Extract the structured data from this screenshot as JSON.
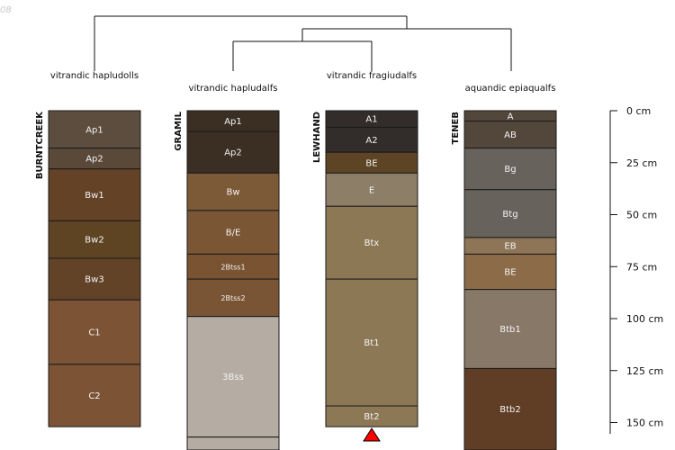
{
  "stamp": "08",
  "depth_unit": "cm",
  "axis_ticks": [
    {
      "depth": 0,
      "label": "0 cm"
    },
    {
      "depth": 25,
      "label": "25 cm"
    },
    {
      "depth": 50,
      "label": "50 cm"
    },
    {
      "depth": 75,
      "label": "75 cm"
    },
    {
      "depth": 100,
      "label": "100 cm"
    },
    {
      "depth": 125,
      "label": "125 cm"
    },
    {
      "depth": 150,
      "label": "150 cm"
    }
  ],
  "profiles": [
    {
      "id": "BURNTCREEK",
      "taxon": "vitrandic hapludolls",
      "horizons": [
        {
          "name": "Ap1",
          "top": 0,
          "bottom": 18,
          "color": "#5c4d3e"
        },
        {
          "name": "Ap2",
          "top": 18,
          "bottom": 28,
          "color": "#5a4939"
        },
        {
          "name": "Bw1",
          "top": 28,
          "bottom": 53,
          "color": "#634226"
        },
        {
          "name": "Bw2",
          "top": 53,
          "bottom": 71,
          "color": "#5f4424"
        },
        {
          "name": "Bw3",
          "top": 71,
          "bottom": 91,
          "color": "#624328"
        },
        {
          "name": "C1",
          "top": 91,
          "bottom": 122,
          "color": "#7c5435"
        },
        {
          "name": "C2",
          "top": 122,
          "bottom": 152,
          "color": "#7c5435"
        }
      ]
    },
    {
      "id": "GRAMIL",
      "taxon": "vitrandic hapludalfs",
      "horizons": [
        {
          "name": "Ap1",
          "top": 0,
          "bottom": 10,
          "color": "#3b2f24"
        },
        {
          "name": "Ap2",
          "top": 10,
          "bottom": 30,
          "color": "#3b2e22"
        },
        {
          "name": "Bw",
          "top": 30,
          "bottom": 48,
          "color": "#7d5a37"
        },
        {
          "name": "B/E",
          "top": 48,
          "bottom": 69,
          "color": "#7a5634"
        },
        {
          "name": "2Btss1",
          "top": 69,
          "bottom": 81,
          "color": "#7a5432"
        },
        {
          "name": "2Btss2",
          "top": 81,
          "bottom": 99,
          "color": "#7a5535"
        },
        {
          "name": "3Bss",
          "top": 99,
          "bottom": 157,
          "color": "#b5aca3"
        },
        {
          "name": "",
          "top": 157,
          "bottom": 165,
          "color": "#b5aca3"
        }
      ]
    },
    {
      "id": "LEWHAND",
      "taxon": "vitrandic fragiudalfs",
      "horizons": [
        {
          "name": "A1",
          "top": 0,
          "bottom": 8,
          "color": "#322d2b"
        },
        {
          "name": "A2",
          "top": 8,
          "bottom": 20,
          "color": "#322d2b"
        },
        {
          "name": "BE",
          "top": 20,
          "bottom": 30,
          "color": "#5c4424"
        },
        {
          "name": "E",
          "top": 30,
          "bottom": 46,
          "color": "#8c7e67"
        },
        {
          "name": "Btx",
          "top": 46,
          "bottom": 81,
          "color": "#8c7854"
        },
        {
          "name": "Bt1",
          "top": 81,
          "bottom": 142,
          "color": "#8c7854"
        },
        {
          "name": "Bt2",
          "top": 142,
          "bottom": 152,
          "color": "#8c7854"
        }
      ]
    },
    {
      "id": "TENEB",
      "taxon": "aquandic epiaqualfs",
      "horizons": [
        {
          "name": "A",
          "top": 0,
          "bottom": 5,
          "color": "#53463b"
        },
        {
          "name": "AB",
          "top": 5,
          "bottom": 18,
          "color": "#53463b"
        },
        {
          "name": "Bg",
          "top": 18,
          "bottom": 38,
          "color": "#67625b"
        },
        {
          "name": "Btg",
          "top": 38,
          "bottom": 61,
          "color": "#67625b"
        },
        {
          "name": "EB",
          "top": 61,
          "bottom": 69,
          "color": "#8f7557"
        },
        {
          "name": "BE",
          "top": 69,
          "bottom": 86,
          "color": "#8c6c48"
        },
        {
          "name": "Btb1",
          "top": 86,
          "bottom": 124,
          "color": "#887868"
        },
        {
          "name": "Btb2",
          "top": 124,
          "bottom": 165,
          "color": "#603e25"
        }
      ]
    }
  ]
}
